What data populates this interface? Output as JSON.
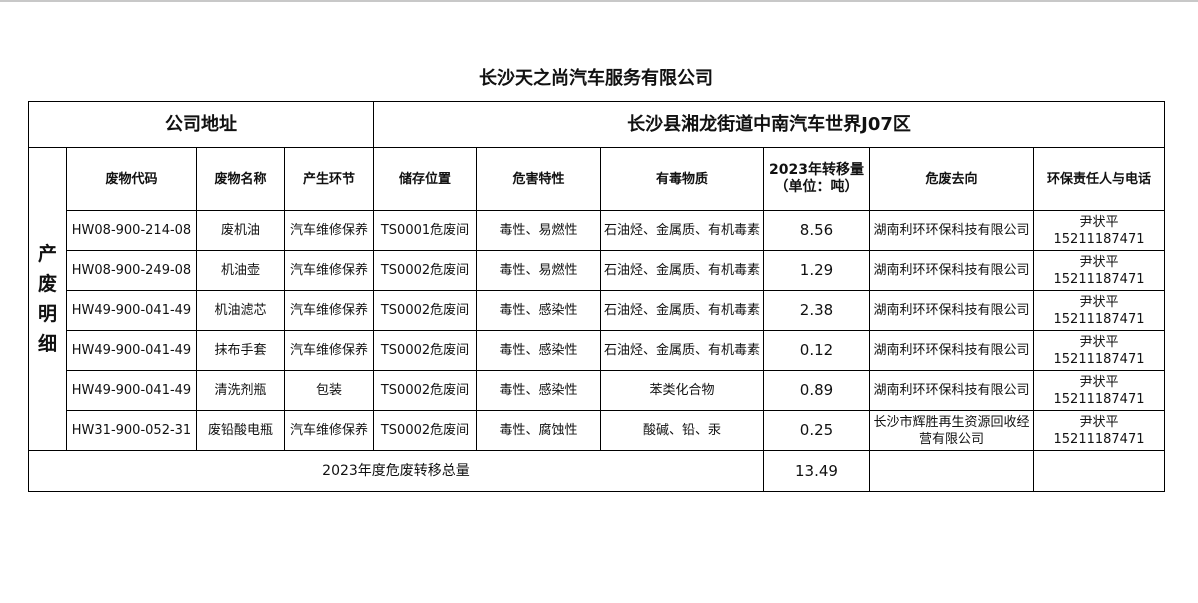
{
  "title": "长沙天之尚汽车服务有限公司",
  "address_label": "公司地址",
  "address_value": "长沙县湘龙街道中南汽车世界J07区",
  "side_label": "产废明细",
  "headers": [
    "废物代码",
    "废物名称",
    "产生环节",
    "储存位置",
    "危害特性",
    "有毒物质",
    "2023年转移量",
    "（单位：吨）",
    "危废去向",
    "环保责任人与电话"
  ],
  "rows": [
    {
      "code": "HW08-900-214-08",
      "name": "废机油",
      "stage": "汽车维修保养",
      "storage": "TS0001危废间",
      "hazard": "毒性、易燃性",
      "toxic": "石油烃、金属质、有机毒素",
      "amount": "8.56",
      "dest": "湖南利环环保科技有限公司",
      "person": "尹状平",
      "phone": "15211187471"
    },
    {
      "code": "HW08-900-249-08",
      "name": "机油壶",
      "stage": "汽车维修保养",
      "storage": "TS0002危废间",
      "hazard": "毒性、易燃性",
      "toxic": "石油烃、金属质、有机毒素",
      "amount": "1.29",
      "dest": "湖南利环环保科技有限公司",
      "person": "尹状平",
      "phone": "15211187471"
    },
    {
      "code": "HW49-900-041-49",
      "name": "机油滤芯",
      "stage": "汽车维修保养",
      "storage": "TS0002危废间",
      "hazard": "毒性、感染性",
      "toxic": "石油烃、金属质、有机毒素",
      "amount": "2.38",
      "dest": "湖南利环环保科技有限公司",
      "person": "尹状平",
      "phone": "15211187471"
    },
    {
      "code": "HW49-900-041-49",
      "name": "抹布手套",
      "stage": "汽车维修保养",
      "storage": "TS0002危废间",
      "hazard": "毒性、感染性",
      "toxic": "石油烃、金属质、有机毒素",
      "amount": "0.12",
      "dest": "湖南利环环保科技有限公司",
      "person": "尹状平",
      "phone": "15211187471"
    },
    {
      "code": "HW49-900-041-49",
      "name": "清洗剂瓶",
      "stage": "包装",
      "storage": "TS0002危废间",
      "hazard": "毒性、感染性",
      "toxic": "苯类化合物",
      "amount": "0.89",
      "dest": "湖南利环环保科技有限公司",
      "person": "尹状平",
      "phone": "15211187471"
    },
    {
      "code": "HW31-900-052-31",
      "name": "废铅酸电瓶",
      "stage": "汽车维修保养",
      "storage": "TS0002危废间",
      "hazard": "毒性、腐蚀性",
      "toxic": "酸碱、铅、汞",
      "amount": "0.25",
      "dest": "长沙市辉胜再生资源回收经营有限公司",
      "person": "尹状平",
      "phone": "15211187471"
    }
  ],
  "total_label": "2023年度危废转移总量",
  "total_value": "13.49"
}
